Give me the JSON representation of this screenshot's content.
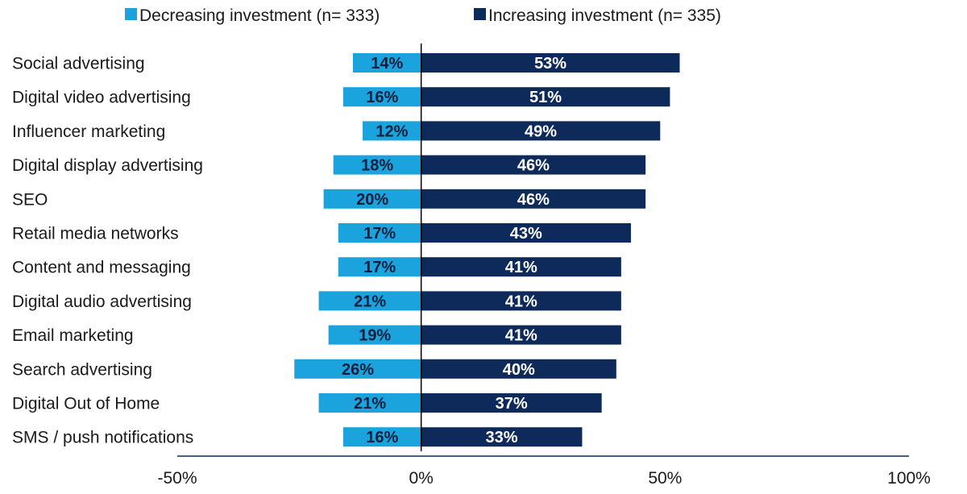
{
  "chart_data": {
    "type": "bar",
    "orientation": "horizontal-diverging",
    "categories": [
      "Social advertising",
      "Digital video advertising",
      "Influencer marketing",
      "Digital display advertising",
      "SEO",
      "Retail media networks",
      "Content and messaging",
      "Digital audio advertising",
      "Email marketing",
      "Search advertising",
      "Digital Out of Home",
      "SMS / push notifications"
    ],
    "series": [
      {
        "name": "Decreasing investment (n= 333)",
        "color": "#1aa3dd",
        "label_color": "#0d1f3c",
        "direction": "negative",
        "values": [
          14,
          16,
          12,
          18,
          20,
          17,
          17,
          21,
          19,
          26,
          21,
          16
        ],
        "labels": [
          "14%",
          "16%",
          "12%",
          "18%",
          "20%",
          "17%",
          "17%",
          "21%",
          "19%",
          "26%",
          "21%",
          "16%"
        ]
      },
      {
        "name": "Increasing investment (n= 335)",
        "color": "#0e2a5a",
        "label_color": "#ffffff",
        "direction": "positive",
        "values": [
          53,
          51,
          49,
          46,
          46,
          43,
          41,
          41,
          41,
          40,
          37,
          33
        ],
        "labels": [
          "53%",
          "51%",
          "49%",
          "46%",
          "46%",
          "43%",
          "41%",
          "41%",
          "41%",
          "40%",
          "37%",
          "33%"
        ]
      }
    ],
    "xlim": [
      -50,
      100
    ],
    "xticks": [
      -50,
      0,
      50,
      100
    ],
    "xtick_labels": [
      "-50%",
      "0%",
      "50%",
      "100%"
    ],
    "legend_position": "top",
    "grid": false,
    "title": "",
    "xlabel": "",
    "ylabel": ""
  }
}
